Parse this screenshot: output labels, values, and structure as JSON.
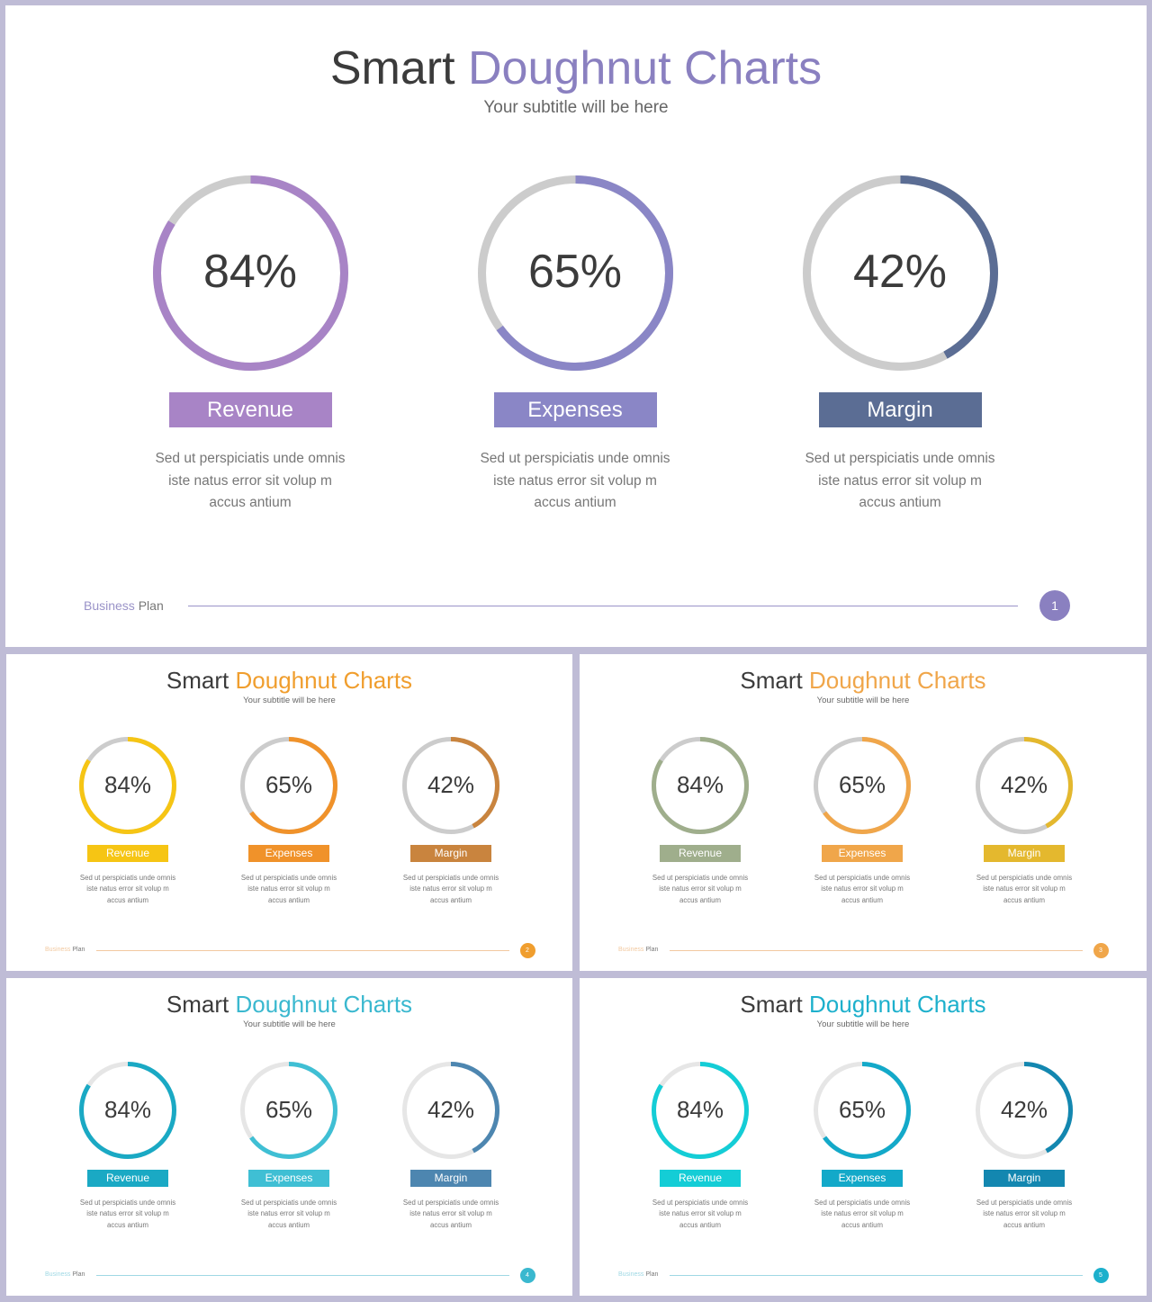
{
  "slides": [
    {
      "title_a": "Smart",
      "title_b": "Doughnut Charts",
      "subtitle": "Your subtitle will be here",
      "accent": "#8a80c0",
      "line_color": "#9a93c8",
      "footer_a": "Business",
      "footer_b": "Plan",
      "page": "1",
      "items": [
        {
          "value": 84,
          "pct": "84%",
          "label": "Revenue",
          "color": "#a884c6"
        },
        {
          "value": 65,
          "pct": "65%",
          "label": "Expenses",
          "color": "#8a86c6"
        },
        {
          "value": 42,
          "pct": "42%",
          "label": "Margin",
          "color": "#5b6d94"
        }
      ],
      "desc": [
        "Sed ut perspiciatis unde omnis",
        "iste natus error sit volup m",
        "accus antium"
      ]
    },
    {
      "title_a": "Smart",
      "title_b": "Doughnut Charts",
      "subtitle": "Your subtitle will be here",
      "accent": "#f09e2e",
      "line_color": "#f2c9a0",
      "footer_a": "Business",
      "footer_b": "Plan",
      "page": "2",
      "items": [
        {
          "value": 84,
          "pct": "84%",
          "label": "Revenue",
          "color": "#f6c514"
        },
        {
          "value": 65,
          "pct": "65%",
          "label": "Expenses",
          "color": "#f0922a"
        },
        {
          "value": 42,
          "pct": "42%",
          "label": "Margin",
          "color": "#c9843e"
        }
      ],
      "desc": [
        "Sed ut perspiciatis unde omnis",
        "iste natus error sit volup m",
        "accus antium"
      ]
    },
    {
      "title_a": "Smart",
      "title_b": "Doughnut Charts",
      "subtitle": "Your subtitle will be here",
      "accent": "#f0a64a",
      "line_color": "#f2c9a0",
      "footer_a": "Business",
      "footer_b": "Plan",
      "page": "3",
      "items": [
        {
          "value": 84,
          "pct": "84%",
          "label": "Revenue",
          "color": "#9fae8c"
        },
        {
          "value": 65,
          "pct": "65%",
          "label": "Expenses",
          "color": "#f0a64a"
        },
        {
          "value": 42,
          "pct": "42%",
          "label": "Margin",
          "color": "#e4b82e"
        }
      ],
      "desc": [
        "Sed ut perspiciatis unde omnis",
        "iste natus error sit volup m",
        "accus antium"
      ]
    },
    {
      "title_a": "Smart",
      "title_b": "Doughnut Charts",
      "subtitle": "Your subtitle will be here",
      "accent": "#3ab8cf",
      "line_color": "#9fd8e4",
      "footer_a": "Business",
      "footer_b": "Plan",
      "page": "4",
      "items": [
        {
          "value": 84,
          "pct": "84%",
          "label": "Revenue",
          "color": "#1aa9c4"
        },
        {
          "value": 65,
          "pct": "65%",
          "label": "Expenses",
          "color": "#3fbfd4"
        },
        {
          "value": 42,
          "pct": "42%",
          "label": "Margin",
          "color": "#4d86b0"
        }
      ],
      "desc": [
        "Sed ut perspiciatis unde omnis",
        "iste natus error sit volup m",
        "accus antium"
      ]
    },
    {
      "title_a": "Smart",
      "title_b": "Doughnut Charts",
      "subtitle": "Your subtitle will be here",
      "accent": "#1db0cc",
      "line_color": "#9fd8e4",
      "footer_a": "Business",
      "footer_b": "Plan",
      "page": "5",
      "items": [
        {
          "value": 84,
          "pct": "84%",
          "label": "Revenue",
          "color": "#14cdd6"
        },
        {
          "value": 65,
          "pct": "65%",
          "label": "Expenses",
          "color": "#13a9c9"
        },
        {
          "value": 42,
          "pct": "42%",
          "label": "Margin",
          "color": "#1387b0"
        }
      ],
      "desc": [
        "Sed ut perspiciatis unde omnis",
        "iste natus error sit volup m",
        "accus antium"
      ]
    }
  ],
  "track_color": "#cccccc",
  "track_color_light": "#e6e6e6",
  "chart_data": [
    {
      "type": "pie",
      "categories": [
        "Revenue",
        "Expenses",
        "Margin"
      ],
      "values": [
        84,
        65,
        42
      ],
      "title": "Smart Doughnut Charts"
    },
    {
      "type": "pie",
      "categories": [
        "Revenue",
        "Expenses",
        "Margin"
      ],
      "values": [
        84,
        65,
        42
      ],
      "title": "Smart Doughnut Charts"
    },
    {
      "type": "pie",
      "categories": [
        "Revenue",
        "Expenses",
        "Margin"
      ],
      "values": [
        84,
        65,
        42
      ],
      "title": "Smart Doughnut Charts"
    },
    {
      "type": "pie",
      "categories": [
        "Revenue",
        "Expenses",
        "Margin"
      ],
      "values": [
        84,
        65,
        42
      ],
      "title": "Smart Doughnut Charts"
    },
    {
      "type": "pie",
      "categories": [
        "Revenue",
        "Expenses",
        "Margin"
      ],
      "values": [
        84,
        65,
        42
      ],
      "title": "Smart Doughnut Charts"
    }
  ]
}
